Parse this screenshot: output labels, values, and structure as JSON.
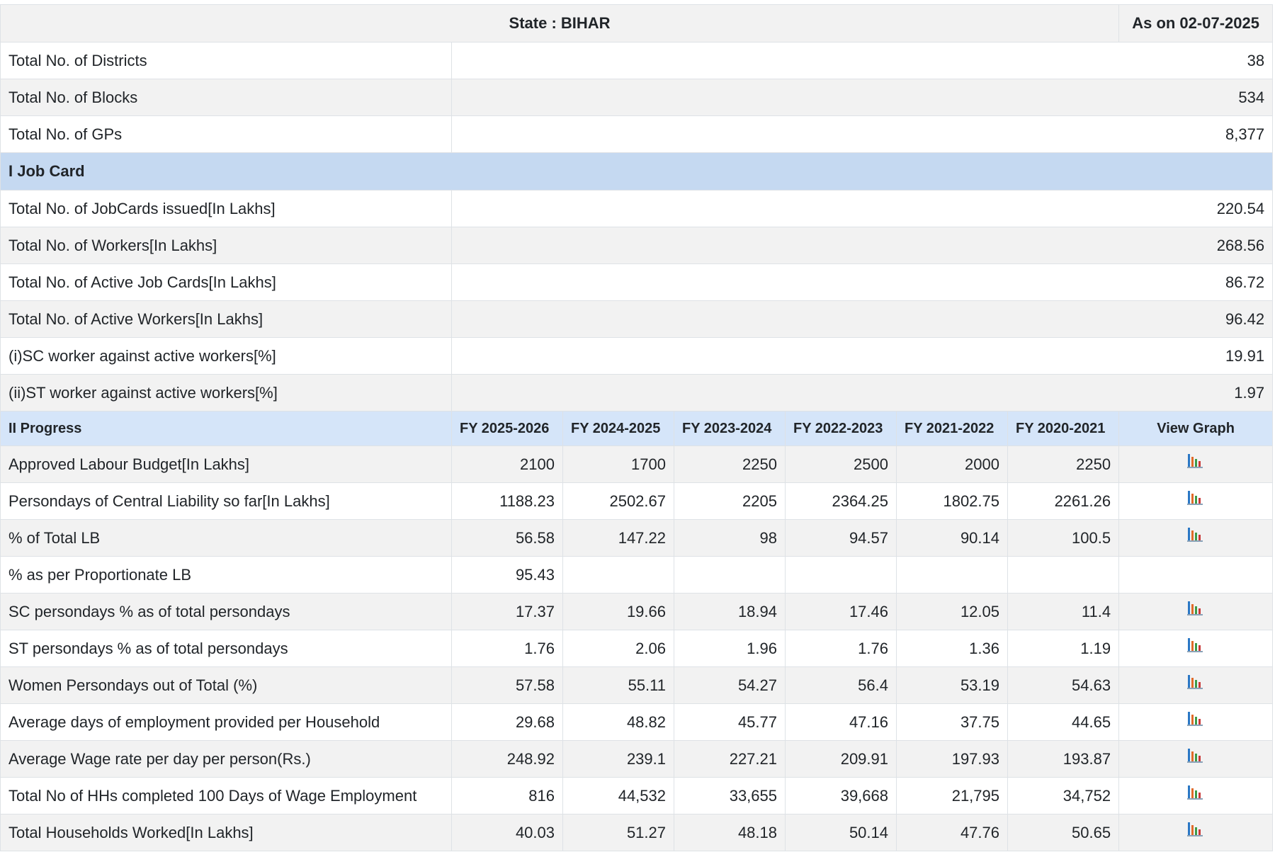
{
  "header": {
    "state_title": "State : BIHAR",
    "as_on": "As on 02-07-2025"
  },
  "summary_rows": [
    {
      "label": "Total No. of Districts",
      "value": "38"
    },
    {
      "label": "Total No. of Blocks",
      "value": "534"
    },
    {
      "label": "Total No. of GPs",
      "value": "8,377"
    }
  ],
  "job_card": {
    "section_title": "I Job Card",
    "rows": [
      {
        "label": "Total No. of JobCards issued[In Lakhs]",
        "value": "220.54"
      },
      {
        "label": "Total No. of Workers[In Lakhs]",
        "value": "268.56"
      },
      {
        "label": "Total No. of Active Job Cards[In Lakhs]",
        "value": "86.72"
      },
      {
        "label": "Total No. of Active Workers[In Lakhs]",
        "value": "96.42"
      },
      {
        "label": "(i)SC worker against active workers[%]",
        "value": "19.91"
      },
      {
        "label": "(ii)ST worker against active workers[%]",
        "value": "1.97"
      }
    ]
  },
  "progress": {
    "section_title": "II Progress",
    "columns": [
      "FY 2025-2026",
      "FY 2024-2025",
      "FY 2023-2024",
      "FY 2022-2023",
      "FY 2021-2022",
      "FY 2020-2021"
    ],
    "view_graph_label": "View Graph",
    "graph_icon": "bar-chart-icon",
    "rows": [
      {
        "label": "Approved Labour Budget[In Lakhs]",
        "values": [
          "2100",
          "1700",
          "2250",
          "2500",
          "2000",
          "2250"
        ],
        "graph": true
      },
      {
        "label": "Persondays of Central Liability so far[In Lakhs]",
        "values": [
          "1188.23",
          "2502.67",
          "2205",
          "2364.25",
          "1802.75",
          "2261.26"
        ],
        "graph": true
      },
      {
        "label": "% of Total LB",
        "values": [
          "56.58",
          "147.22",
          "98",
          "94.57",
          "90.14",
          "100.5"
        ],
        "graph": true
      },
      {
        "label": "% as per Proportionate LB",
        "values": [
          "95.43",
          "",
          "",
          "",
          "",
          ""
        ],
        "graph": false
      },
      {
        "label": "SC persondays % as of total persondays",
        "values": [
          "17.37",
          "19.66",
          "18.94",
          "17.46",
          "12.05",
          "11.4"
        ],
        "graph": true
      },
      {
        "label": "ST persondays % as of total persondays",
        "values": [
          "1.76",
          "2.06",
          "1.96",
          "1.76",
          "1.36",
          "1.19"
        ],
        "graph": true
      },
      {
        "label": "Women Persondays out of Total (%)",
        "values": [
          "57.58",
          "55.11",
          "54.27",
          "56.4",
          "53.19",
          "54.63"
        ],
        "graph": true
      },
      {
        "label": "Average days of employment provided per Household",
        "values": [
          "29.68",
          "48.82",
          "45.77",
          "47.16",
          "37.75",
          "44.65"
        ],
        "graph": true
      },
      {
        "label": "Average Wage rate per day per person(Rs.)",
        "values": [
          "248.92",
          "239.1",
          "227.21",
          "209.91",
          "197.93",
          "193.87"
        ],
        "graph": true
      },
      {
        "label": "Total No of HHs completed 100 Days of Wage Employment",
        "values": [
          "816",
          "44,532",
          "33,655",
          "39,668",
          "21,795",
          "34,752"
        ],
        "graph": true
      },
      {
        "label": "Total Households Worked[In Lakhs]",
        "values": [
          "40.03",
          "51.27",
          "48.18",
          "50.14",
          "47.76",
          "50.65"
        ],
        "graph": true
      }
    ]
  },
  "colors": {
    "section_bg": "#c5d9f1",
    "progress_header_bg": "#d5e5f9",
    "stripe_bg": "#f2f2f2",
    "border": "#dee2e6"
  }
}
